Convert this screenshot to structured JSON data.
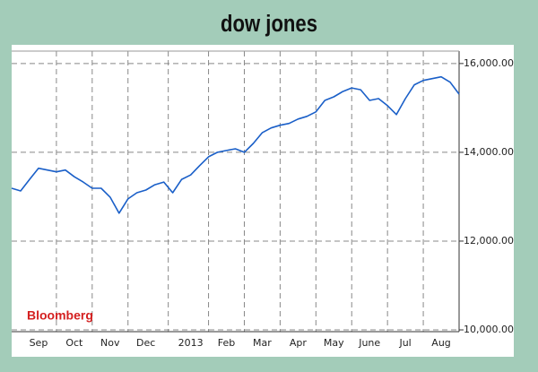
{
  "chart_data": {
    "type": "line",
    "title": "dow jones",
    "annotation": "Bloomberg",
    "categories": [
      null,
      null,
      null,
      "Sep",
      null,
      null,
      null,
      "Oct",
      null,
      null,
      null,
      "Nov",
      null,
      null,
      null,
      "Dec",
      null,
      null,
      null,
      null,
      "2013",
      null,
      null,
      null,
      "Feb",
      null,
      null,
      null,
      "Mar",
      null,
      null,
      null,
      "Apr",
      null,
      null,
      null,
      "May",
      null,
      null,
      null,
      "June",
      null,
      null,
      null,
      "Jul",
      null,
      null,
      null,
      "Aug",
      null,
      null
    ],
    "series": [
      {
        "name": "Dow Jones",
        "color": "#1a5fc8",
        "values": [
          13190,
          13130,
          13390,
          13640,
          13600,
          13560,
          13600,
          13450,
          13330,
          13190,
          13190,
          12990,
          12630,
          12950,
          13090,
          13150,
          13270,
          13330,
          13090,
          13390,
          13490,
          13700,
          13900,
          14000,
          14040,
          14080,
          14000,
          14200,
          14440,
          14550,
          14610,
          14650,
          14750,
          14810,
          14910,
          15170,
          15250,
          15370,
          15450,
          15410,
          15170,
          15210,
          15050,
          14850,
          15210,
          15520,
          15620,
          15660,
          15700,
          15580,
          15310
        ]
      }
    ],
    "ylim": [
      9960,
      16280
    ],
    "yticks": [
      {
        "value": 10000,
        "label": "10,000.00"
      },
      {
        "value": 12000,
        "label": "12,000.00"
      },
      {
        "value": 14000,
        "label": "14,000.00"
      },
      {
        "value": 16000,
        "label": "16,000.00"
      }
    ],
    "grid": true,
    "y_axis_side": "right"
  }
}
